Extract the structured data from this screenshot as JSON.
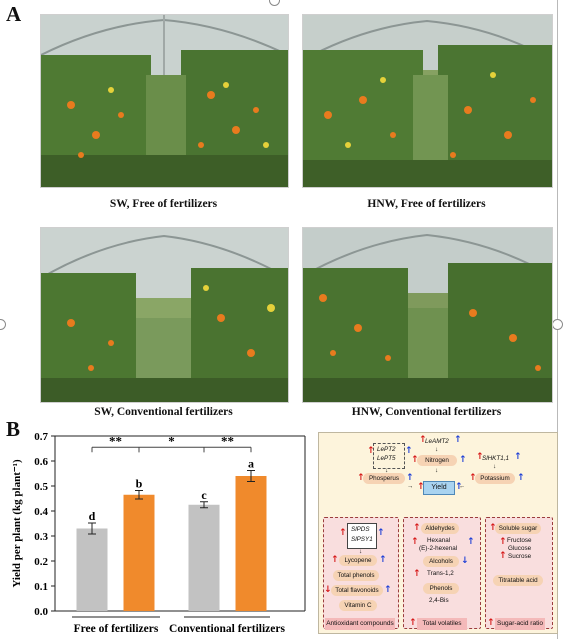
{
  "figure": {
    "panel_a": "A",
    "panel_b": "B"
  },
  "photos": [
    {
      "caption": "SW, Free of fertilizers"
    },
    {
      "caption": "HNW, Free of fertilizers"
    },
    {
      "caption": "SW, Conventional fertilizers"
    },
    {
      "caption": "HNW, Conventional fertilizers"
    }
  ],
  "chart_data": {
    "type": "bar",
    "ylabel": "Yield per plant (kg plant⁻¹)",
    "ylim": [
      0,
      0.7
    ],
    "yticks": [
      "0.0",
      "0.1",
      "0.2",
      "0.3",
      "0.4",
      "0.5",
      "0.6",
      "0.7"
    ],
    "groups": [
      "Free of fertilizers",
      "Conventional fertilizers"
    ],
    "bars": [
      {
        "group": "Free of fertilizers",
        "value": 0.33,
        "error": 0.022,
        "letter": "d",
        "color": "#c2c2c2"
      },
      {
        "group": "Free of fertilizers",
        "value": 0.465,
        "error": 0.017,
        "letter": "b",
        "color": "#f08a2c"
      },
      {
        "group": "Conventional fertilizers",
        "value": 0.425,
        "error": 0.012,
        "letter": "c",
        "color": "#c2c2c2"
      },
      {
        "group": "Conventional fertilizers",
        "value": 0.54,
        "error": 0.022,
        "letter": "a",
        "color": "#f08a2c"
      }
    ],
    "significance": [
      "**",
      "*",
      "**"
    ],
    "grid": false,
    "legend": "none"
  },
  "diagram": {
    "genes_p": [
      "LePT2",
      "LePT5"
    ],
    "gene_n": "LeAMT2",
    "gene_k": "SlHKT1,1",
    "phosphorus": "Phosperus",
    "nitrogen": "Nitrogen",
    "potassium": "Potassium",
    "yield": "Yield",
    "genes_lyc": [
      "SlPDS",
      "SlPSY1"
    ],
    "lycopene": "Lycopene",
    "total_phenols": "Total phenols",
    "total_flavonoids": "Total flavonoids",
    "vitamin_c": "Vitamin C",
    "antioxidant": "Antioxidant compounds",
    "aldehydes": "Aldehydes",
    "hexanal": "Hexanal",
    "hexenal": "(E)-2-hexenal",
    "alcohols": "Alcohols",
    "trans": "Trans-1,2",
    "phenols": "Phenols",
    "bis": "2,4-Bis",
    "total_volatiles": "Total volatiles",
    "soluble_sugar": "Soluble sugar",
    "fructose": "Fructose",
    "glucose": "Glucose",
    "sucrose": "Sucrose",
    "titratable": "Titratable acid",
    "sugar_acid": "Sugar-acid ratio"
  }
}
